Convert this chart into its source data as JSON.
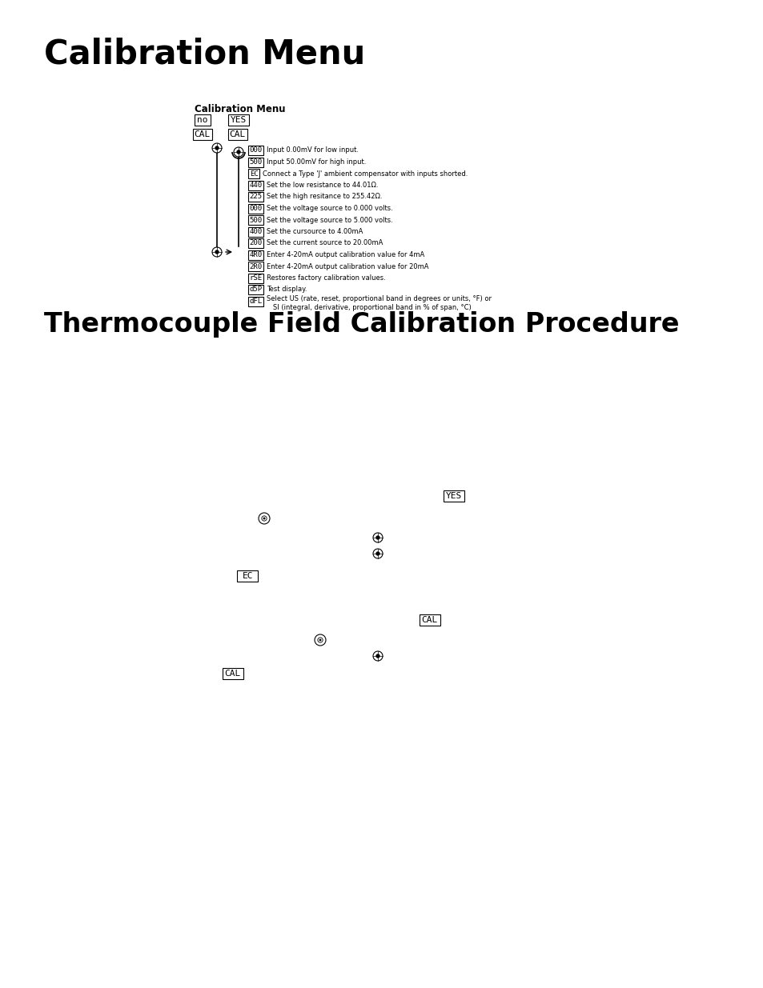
{
  "title1": "Calibration Menu",
  "title2": "Thermocouple Field Calibration Procedure",
  "bg_color": "#ffffff",
  "section1_label": "Calibration Menu",
  "menu_items": [
    {
      "code": "000",
      "text": "Input 0.00mV for low input."
    },
    {
      "code": "500",
      "text": "Input 50.00mV for high input."
    },
    {
      "code": "EC",
      "text": "Connect a Type 'J' ambient compensator with inputs shorted."
    },
    {
      "code": "440",
      "text": "Set the low resistance to 44.01Ω."
    },
    {
      "code": "225",
      "text": "Set the high resitance to 255.42Ω."
    },
    {
      "code": "000",
      "text": "Set the voltage source to 0.000 volts."
    },
    {
      "code": "500",
      "text": "Set the voltage source to 5.000 volts."
    },
    {
      "code": "400",
      "text": "Set the cursource to 4.00mA"
    },
    {
      "code": "200",
      "text": "Set the current source to 20.00mA"
    },
    {
      "code": "4R0",
      "text": "Enter 4-20mA output calibration value for 4mA"
    },
    {
      "code": "2R0",
      "text": "Enter 4-20mA output calibration value for 20mA"
    },
    {
      "code": "rSE",
      "text": "Restores factory calibration values."
    },
    {
      "code": "d5P",
      "text": "Test display."
    },
    {
      "code": "dFL",
      "text": "Select US (rate, reset, proportional band in degrees or units, °F) or\nSI (integral, derivative, proportional band in % of span, °C)"
    }
  ]
}
